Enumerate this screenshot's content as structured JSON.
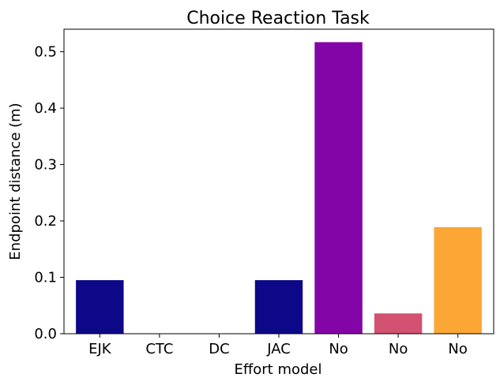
{
  "chart_data": {
    "type": "bar",
    "title": "Choice Reaction Task",
    "xlabel": "Effort model",
    "ylabel": "Endpoint distance (m)",
    "categories": [
      "EJK",
      "CTC",
      "DC",
      "JAC",
      "No",
      "No",
      "No"
    ],
    "values": [
      0.095,
      0.0,
      0.0,
      0.095,
      0.517,
      0.036,
      0.189
    ],
    "colors": [
      "#0d0887",
      "#0d0887",
      "#0d0887",
      "#0d0887",
      "#8405a7",
      "#d35171",
      "#fca636"
    ],
    "ylim": [
      0,
      0.54
    ],
    "yticks": [
      0.0,
      0.1,
      0.2,
      0.3,
      0.4,
      0.5
    ],
    "ytick_labels": [
      "0.0",
      "0.1",
      "0.2",
      "0.3",
      "0.4",
      "0.5"
    ],
    "grid": false,
    "legend": "none"
  }
}
